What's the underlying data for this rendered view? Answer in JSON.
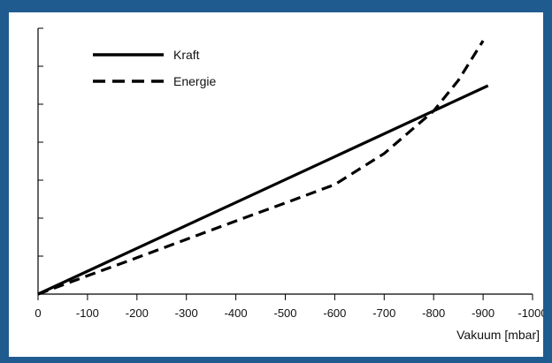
{
  "chart_data": {
    "type": "line",
    "xlabel": "Vakuum [mbar]",
    "ylabel": "",
    "title": "",
    "x_ticks": [
      "0",
      "-100",
      "-200",
      "-300",
      "-400",
      "-500",
      "-600",
      "-700",
      "-800",
      "-900",
      "-1000"
    ],
    "xlim": [
      0,
      -1000
    ],
    "y_tick_count": 7,
    "y_tick_labels_shown": false,
    "legend_position": "top-left",
    "grid": false,
    "series": [
      {
        "name": "Kraft",
        "style": "solid",
        "color": "#000000",
        "points": [
          [
            0,
            0
          ],
          [
            910,
            0.784
          ]
        ]
      },
      {
        "name": "Energie",
        "style": "dashed",
        "color": "#000000",
        "points": [
          [
            0,
            0
          ],
          [
            100,
            0.069
          ],
          [
            200,
            0.137
          ],
          [
            300,
            0.206
          ],
          [
            400,
            0.275
          ],
          [
            500,
            0.343
          ],
          [
            600,
            0.412
          ],
          [
            700,
            0.529
          ],
          [
            800,
            0.689
          ],
          [
            850,
            0.804
          ],
          [
            900,
            0.953
          ]
        ]
      }
    ]
  },
  "colors": {
    "frame": "#1f5b8f",
    "background": "#ffffff",
    "ink": "#000000"
  }
}
